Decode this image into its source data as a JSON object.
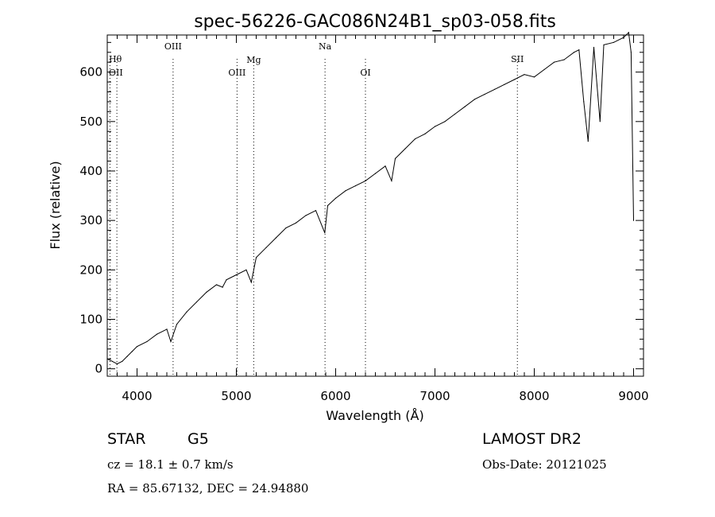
{
  "chart_data": {
    "type": "line",
    "title": "spec-56226-GAC086N24B1_sp03-058.fits",
    "xlabel": "Wavelength (Å)",
    "ylabel": "Flux (relative)",
    "xlim": [
      3700,
      9100
    ],
    "ylim": [
      -15,
      675
    ],
    "xticks": [
      4000,
      5000,
      6000,
      7000,
      8000,
      9000
    ],
    "yticks": [
      0,
      100,
      200,
      300,
      400,
      500,
      600
    ],
    "xtick_labels": [
      "4000",
      "5000",
      "6000",
      "7000",
      "8000",
      "9000"
    ],
    "ytick_labels": [
      "0",
      "100",
      "200",
      "300",
      "400",
      "500",
      "600"
    ],
    "grid": false,
    "series": [
      {
        "x": [
          3700,
          3750,
          3800,
          3850,
          3900,
          3950,
          4000,
          4100,
          4200,
          4300,
          4340,
          4400,
          4500,
          4600,
          4700,
          4800,
          4861,
          4900,
          5000,
          5100,
          5150,
          5200,
          5300,
          5400,
          5500,
          5600,
          5700,
          5800,
          5890,
          5920,
          6000,
          6100,
          6200,
          6300,
          6400,
          6500,
          6563,
          6600,
          6700,
          6800,
          6900,
          7000,
          7100,
          7200,
          7300,
          7400,
          7500,
          7600,
          7700,
          7800,
          7900,
          8000,
          8100,
          8200,
          8300,
          8400,
          8450,
          8498,
          8542,
          8600,
          8662,
          8700,
          8800,
          8900,
          8950,
          8975,
          9000
        ],
        "y": [
          20,
          15,
          10,
          15,
          25,
          35,
          45,
          55,
          70,
          80,
          55,
          90,
          115,
          135,
          155,
          170,
          165,
          180,
          190,
          200,
          175,
          225,
          245,
          265,
          285,
          295,
          310,
          320,
          275,
          330,
          345,
          360,
          370,
          380,
          395,
          410,
          380,
          425,
          445,
          465,
          475,
          490,
          500,
          515,
          530,
          545,
          555,
          565,
          575,
          585,
          595,
          590,
          605,
          620,
          625,
          640,
          645,
          540,
          460,
          650,
          500,
          655,
          660,
          670,
          680,
          640,
          300
        ]
      }
    ],
    "line_markers": [
      {
        "label": "Hθ",
        "x": 3797
      },
      {
        "label": "OII",
        "x": 3727
      },
      {
        "label": "OIII",
        "x": 4363
      },
      {
        "label": "OIII",
        "x": 5007
      },
      {
        "label": "Mg",
        "x": 5175
      },
      {
        "label": "Na",
        "x": 5893
      },
      {
        "label": "OI",
        "x": 6300
      },
      {
        "label": "SII",
        "x": 7830
      }
    ]
  },
  "info": {
    "object_class": "STAR",
    "subclass": "G5",
    "survey": "LAMOST DR2",
    "redshift_text": "cz = 18.1 ± 0.7 km/s",
    "obs_date_text": "Obs-Date: 20121025",
    "coords_text": "RA =  85.67132, DEC =  24.94880"
  }
}
